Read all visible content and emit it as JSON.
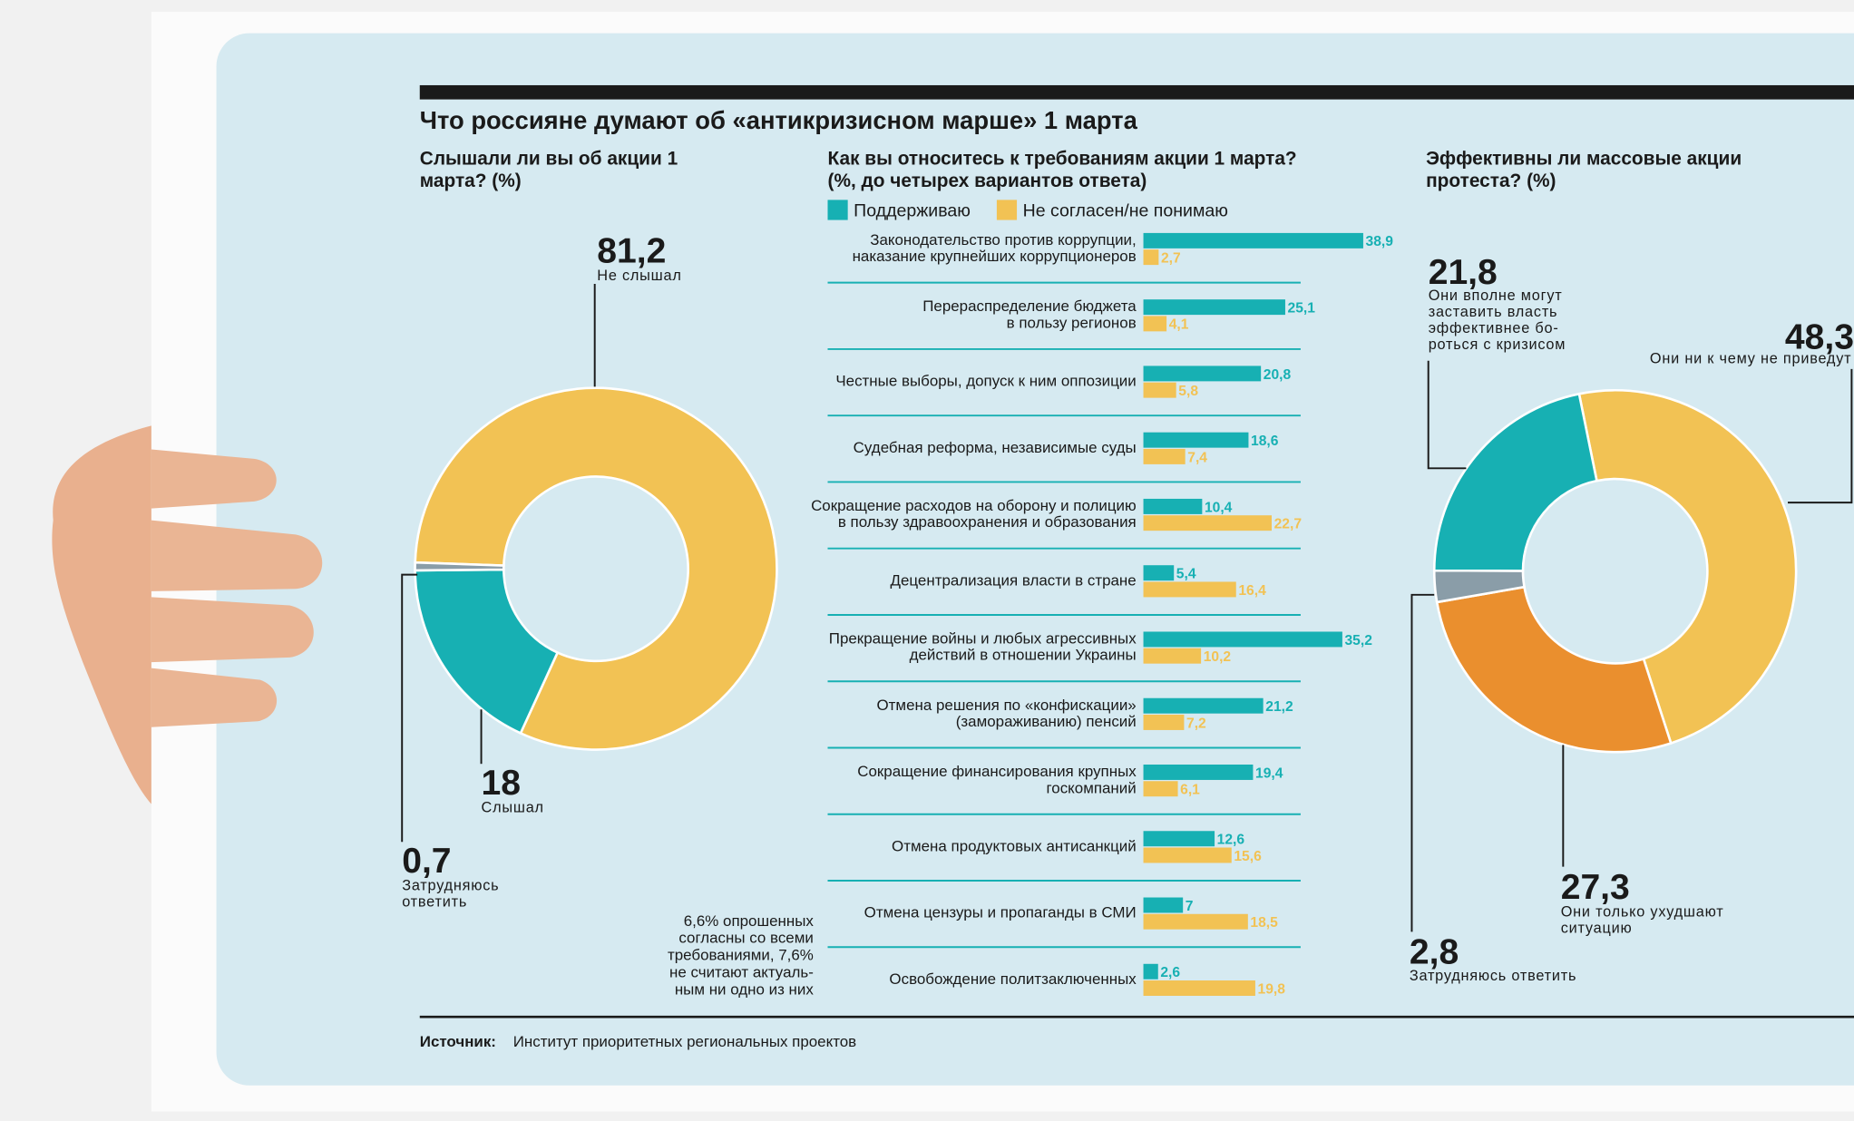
{
  "title": "Что россияне думают об «антикризисном  марше» 1 марта",
  "source_label": "Источник:",
  "source": "Институт приоритетных региональных проектов",
  "chart_data": [
    {
      "type": "donut",
      "title": "Слышали ли вы об акции 1\nмарта? (%)",
      "categories": [
        "Не слышал",
        "Слышал",
        "Затрудняюсь\nответить"
      ],
      "values": [
        81.2,
        18,
        0.7
      ],
      "value_labels": [
        "81,2",
        "18",
        "0,7"
      ],
      "colors": [
        "#f2c254",
        "#17b0b3",
        "#8a9da8"
      ]
    },
    {
      "type": "hbar",
      "title": "Как вы относитесь к требованиям акции 1 марта?\n(%, до четырех вариантов ответа)",
      "categories": [
        "Законодательство против коррупции,\nнаказание крупнейших коррупционеров",
        "Перераспределение бюджета\nв пользу регионов",
        "Честные выборы, допуск к ним оппозиции",
        "Судебная реформа, независимые суды",
        "Сокращение расходов на оборону и полицию\nв пользу здравоохранения и образования",
        "Децентрализация власти в стране",
        "Прекращение войны и любых агрессивных\nдействий в отношении Украины",
        "Отмена решения по «конфискации»\n(замораживанию) пенсий",
        "Сокращение финансирования крупных\nгоскомпаний",
        "Отмена продуктовых антисанкций",
        "Отмена цензуры и пропаганды в СМИ",
        "Освобождение политзаключенных"
      ],
      "series": [
        {
          "name": "Поддерживаю",
          "color": "#17b0b3",
          "values": [
            38.9,
            25.1,
            20.8,
            18.6,
            10.4,
            5.4,
            35.2,
            21.2,
            19.4,
            12.6,
            7,
            2.6
          ],
          "value_labels": [
            "38,9",
            "25,1",
            "20,8",
            "18,6",
            "10,4",
            "5,4",
            "35,2",
            "21,2",
            "19,4",
            "12,6",
            "7",
            "2,6"
          ]
        },
        {
          "name": "Не согласен/не понимаю",
          "color": "#f2c254",
          "values": [
            2.7,
            4.1,
            5.8,
            7.4,
            22.7,
            16.4,
            10.2,
            7.2,
            6.1,
            15.6,
            18.5,
            19.8
          ],
          "value_labels": [
            "2,7",
            "4,1",
            "5,8",
            "7,4",
            "22,7",
            "16,4",
            "10,2",
            "7,2",
            "6,1",
            "15,6",
            "18,5",
            "19,8"
          ]
        }
      ],
      "annotation": "6,6% опрошенных\nсогласны со всеми\nтребованиями, 7,6%\nне считают актуаль-\nным ни одно из них"
    },
    {
      "type": "donut",
      "title": "Эффективны ли массовые акции\nпротеста? (%)",
      "categories": [
        "Они ни к чему не приведут",
        "Они только ухудшают\nситуацию",
        "Затрудняюсь ответить",
        "Они вполне могут\nзаставить власть\nэффективнее бо-\nроться с кризисом"
      ],
      "values": [
        48.3,
        27.3,
        2.8,
        21.8
      ],
      "value_labels": [
        "48,3",
        "27,3",
        "2,8",
        "21,8"
      ],
      "colors": [
        "#f2c254",
        "#ea8f2e",
        "#8a9da8",
        "#17b0b3"
      ]
    }
  ]
}
